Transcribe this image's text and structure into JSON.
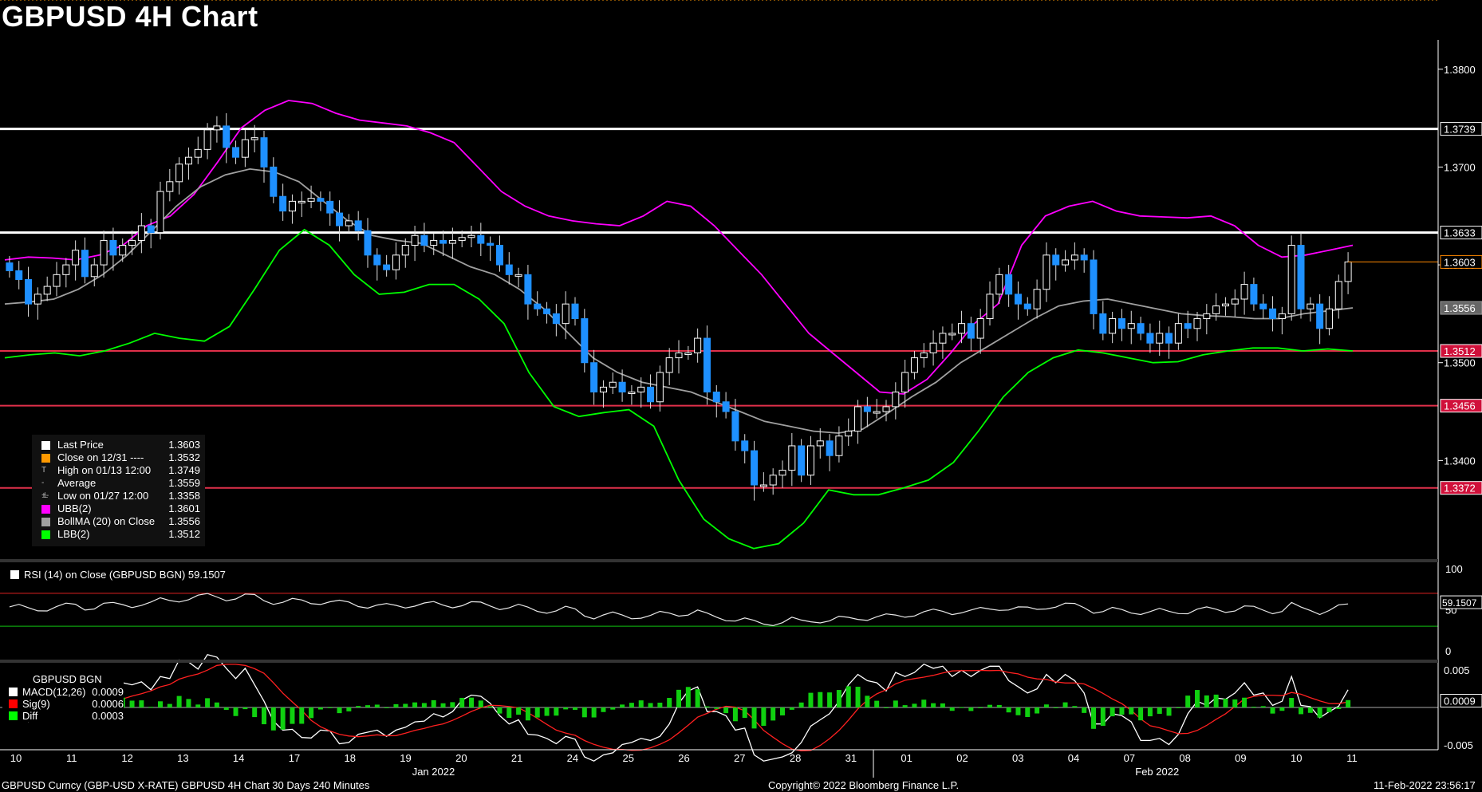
{
  "title": "GBPUSD 4H Chart",
  "footer": {
    "left": "GBPUSD Curncy (GBP-USD X-RATE) GBPUSD 4H Chart 30 Days 240 Minutes",
    "center": "Copyright© 2022 Bloomberg Finance L.P.",
    "right": "11-Feb-2022 23:56:17"
  },
  "colors": {
    "up": "#ffffff",
    "down": "#1e90ff",
    "ubb": "#ff00ff",
    "lbb": "#00ff00",
    "bollma": "#a0a0a0",
    "resistance": "#ffffff",
    "support": "#e0304a",
    "close_ref": "#ff9900"
  },
  "legend": [
    {
      "label": "Last Price",
      "value": "1.3603",
      "swatch": "#ffffff"
    },
    {
      "label": "Close on 12/31 ----",
      "value": "1.3532",
      "swatch": "#ff9900"
    },
    {
      "label": "High on 01/13 12:00",
      "value": "1.3749",
      "swatch": "none",
      "marker": "T"
    },
    {
      "label": "Average",
      "value": "1.3559",
      "swatch": "none",
      "marker": "-+-"
    },
    {
      "label": "Low on 01/27 12:00",
      "value": "1.3358",
      "swatch": "none",
      "marker": "⊥"
    },
    {
      "label": "UBB(2)",
      "value": "1.3601",
      "swatch": "#ff00ff"
    },
    {
      "label": "BollMA (20)  on Close",
      "value": "1.3556",
      "swatch": "#a0a0a0"
    },
    {
      "label": "LBB(2)",
      "value": "1.3512",
      "swatch": "#00ff00"
    }
  ],
  "rsi_label": "RSI (14)  on Close (GBPUSD BGN) 59.1507",
  "macd_legend": {
    "header": "GBPUSD BGN",
    "rows": [
      {
        "label": "MACD(12,26)",
        "value": "0.0009",
        "swatch": "#ffffff"
      },
      {
        "label": "Sig(9)",
        "value": "0.0006",
        "swatch": "#ff0000"
      },
      {
        "label": "Diff",
        "value": "0.0003",
        "swatch": "#00ff00"
      }
    ]
  },
  "chart_data": {
    "type": "candlestick",
    "title": "GBPUSD 4H Chart",
    "ylim": [
      1.33,
      1.383
    ],
    "y_ticks": [
      "1.3400",
      "1.3500",
      "1.3600",
      "1.3700",
      "1.3800"
    ],
    "x_tick_labels": [
      "10",
      "11",
      "12",
      "13",
      "14",
      "17",
      "18",
      "19",
      "20",
      "21",
      "24",
      "25",
      "26",
      "27",
      "28",
      "31",
      "01",
      "02",
      "03",
      "04",
      "07",
      "08",
      "09",
      "10",
      "11"
    ],
    "x_month_labels": [
      {
        "label": "Jan 2022",
        "after_day_index": 7
      },
      {
        "label": "Feb 2022",
        "after_day_index": 20
      }
    ],
    "horizontal_levels": [
      {
        "value": 1.3739,
        "label": "1.3739",
        "kind": "resistance"
      },
      {
        "value": 1.3633,
        "label": "1.3633",
        "kind": "resistance"
      },
      {
        "value": 1.3512,
        "label": "1.3512",
        "kind": "support"
      },
      {
        "value": 1.3456,
        "label": "1.3456",
        "kind": "support"
      },
      {
        "value": 1.3372,
        "label": "1.3372",
        "kind": "support"
      }
    ],
    "close_reference": 1.3532,
    "last_price": {
      "value": 1.3603,
      "label": "1.3603"
    },
    "bollma_last": {
      "value": 1.3556,
      "label": "1.3556"
    },
    "closes": [
      1.3594,
      1.3585,
      1.356,
      1.357,
      1.3578,
      1.359,
      1.36,
      1.3615,
      1.3588,
      1.36,
      1.3625,
      1.361,
      1.362,
      1.3625,
      1.364,
      1.3633,
      1.3675,
      1.3685,
      1.3703,
      1.371,
      1.3718,
      1.3738,
      1.3742,
      1.372,
      1.371,
      1.3728,
      1.373,
      1.37,
      1.367,
      1.3655,
      1.3665,
      1.3665,
      1.3668,
      1.3665,
      1.3653,
      1.364,
      1.3645,
      1.3635,
      1.361,
      1.36,
      1.3595,
      1.361,
      1.362,
      1.363,
      1.362,
      1.3625,
      1.3622,
      1.3625,
      1.3628,
      1.363,
      1.3622,
      1.362,
      1.36,
      1.359,
      1.359,
      1.356,
      1.3555,
      1.355,
      1.354,
      1.356,
      1.3545,
      1.35,
      1.347,
      1.3475,
      1.348,
      1.347,
      1.347,
      1.3475,
      1.346,
      1.349,
      1.3505,
      1.351,
      1.351,
      1.3525,
      1.347,
      1.346,
      1.345,
      1.342,
      1.341,
      1.3375,
      1.3375,
      1.3385,
      1.339,
      1.3415,
      1.3385,
      1.3415,
      1.342,
      1.3405,
      1.3425,
      1.343,
      1.3455,
      1.345,
      1.345,
      1.3455,
      1.347,
      1.349,
      1.3505,
      1.351,
      1.352,
      1.353,
      1.353,
      1.354,
      1.3525,
      1.3545,
      1.357,
      1.359,
      1.357,
      1.356,
      1.3555,
      1.3575,
      1.361,
      1.36,
      1.3605,
      1.361,
      1.3605,
      1.355,
      1.353,
      1.3545,
      1.3535,
      1.354,
      1.353,
      1.352,
      1.353,
      1.352,
      1.354,
      1.3535,
      1.3545,
      1.355,
      1.3558,
      1.356,
      1.3565,
      1.358,
      1.356,
      1.3555,
      1.3545,
      1.355,
      1.362,
      1.3555,
      1.356,
      1.3535,
      1.3555,
      1.3583,
      1.3603
    ],
    "ubb": [
      1.3605,
      1.3608,
      1.3607,
      1.3605,
      1.361,
      1.362,
      1.364,
      1.365,
      1.3672,
      1.3705,
      1.374,
      1.3758,
      1.3768,
      1.3765,
      1.3755,
      1.3748,
      1.3745,
      1.3742,
      1.3735,
      1.3725,
      1.37,
      1.3675,
      1.366,
      1.365,
      1.3645,
      1.3642,
      1.364,
      1.365,
      1.3665,
      1.366,
      1.364,
      1.3615,
      1.359,
      1.356,
      1.353,
      1.351,
      1.349,
      1.347,
      1.3468,
      1.3483,
      1.351,
      1.354,
      1.356,
      1.362,
      1.365,
      1.366,
      1.3665,
      1.3655,
      1.365,
      1.3649,
      1.3648,
      1.365,
      1.364,
      1.362,
      1.3608,
      1.361,
      1.3615,
      1.362
    ],
    "bollma": [
      1.356,
      1.3562,
      1.3565,
      1.3575,
      1.359,
      1.361,
      1.3635,
      1.366,
      1.368,
      1.3692,
      1.3698,
      1.3695,
      1.3685,
      1.3665,
      1.3645,
      1.363,
      1.3625,
      1.3622,
      1.361,
      1.3598,
      1.359,
      1.3575,
      1.3555,
      1.353,
      1.3505,
      1.349,
      1.348,
      1.3475,
      1.347,
      1.346,
      1.345,
      1.344,
      1.3435,
      1.343,
      1.3428,
      1.3432,
      1.3448,
      1.3465,
      1.348,
      1.35,
      1.3515,
      1.353,
      1.3545,
      1.3558,
      1.3563,
      1.3565,
      1.356,
      1.3555,
      1.355,
      1.3548,
      1.3547,
      1.3545,
      1.3545,
      1.355,
      1.3553,
      1.3556
    ],
    "lbb": [
      1.3505,
      1.3508,
      1.351,
      1.3507,
      1.3512,
      1.352,
      1.353,
      1.3525,
      1.3522,
      1.3537,
      1.3575,
      1.3615,
      1.3636,
      1.362,
      1.359,
      1.357,
      1.3572,
      1.358,
      1.358,
      1.3565,
      1.354,
      1.349,
      1.3455,
      1.3445,
      1.3449,
      1.3452,
      1.3435,
      1.338,
      1.334,
      1.332,
      1.331,
      1.3315,
      1.3336,
      1.337,
      1.3365,
      1.3365,
      1.3372,
      1.338,
      1.3398,
      1.343,
      1.3465,
      1.349,
      1.3505,
      1.3513,
      1.351,
      1.3505,
      1.35,
      1.3501,
      1.3508,
      1.3512,
      1.3515,
      1.3515,
      1.3512,
      1.3514,
      1.3512
    ]
  }
}
